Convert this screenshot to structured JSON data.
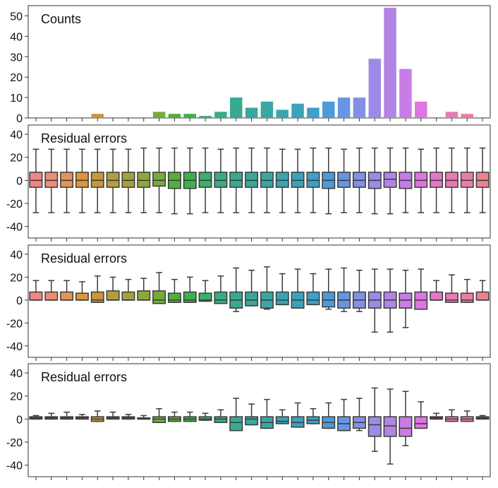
{
  "chart_data": [
    {
      "type": "bar",
      "title": "Counts",
      "ylim": [
        0,
        55
      ],
      "yticks": [
        0,
        10,
        20,
        30,
        40,
        50
      ],
      "values": [
        0,
        0,
        0,
        0,
        2,
        0,
        0,
        0,
        3,
        2,
        2,
        1,
        3,
        10,
        5,
        8,
        4,
        7,
        5,
        8,
        10,
        10,
        29,
        54,
        24,
        8,
        0,
        3,
        2,
        0
      ]
    },
    {
      "type": "box",
      "title": "Residual errors",
      "ylim": [
        -50,
        48
      ],
      "yticks": [
        40,
        20,
        0,
        -20,
        -40
      ],
      "tick_labels": [
        "40",
        "20",
        "0",
        "-20",
        "-40"
      ],
      "boxes": [
        {
          "low": -28,
          "q1": -6,
          "med": 0,
          "q3": 7,
          "high": 27
        },
        {
          "low": -28,
          "q1": -6,
          "med": 0,
          "q3": 7,
          "high": 27
        },
        {
          "low": -28,
          "q1": -6,
          "med": 0,
          "q3": 7,
          "high": 27
        },
        {
          "low": -28,
          "q1": -6,
          "med": 0,
          "q3": 7,
          "high": 27
        },
        {
          "low": -28,
          "q1": -6,
          "med": 0,
          "q3": 7,
          "high": 27
        },
        {
          "low": -28,
          "q1": -6,
          "med": 0,
          "q3": 7,
          "high": 27
        },
        {
          "low": -28,
          "q1": -6,
          "med": 0,
          "q3": 7,
          "high": 27
        },
        {
          "low": -28,
          "q1": -6,
          "med": 0,
          "q3": 7,
          "high": 28
        },
        {
          "low": -28,
          "q1": -5,
          "med": 0,
          "q3": 7,
          "high": 28
        },
        {
          "low": -29,
          "q1": -7,
          "med": 0,
          "q3": 7,
          "high": 28
        },
        {
          "low": -29,
          "q1": -7,
          "med": 0,
          "q3": 7,
          "high": 28
        },
        {
          "low": -28,
          "q1": -6,
          "med": 0,
          "q3": 7,
          "high": 28
        },
        {
          "low": -28,
          "q1": -6,
          "med": 0,
          "q3": 7,
          "high": 27
        },
        {
          "low": -28,
          "q1": -6,
          "med": 0,
          "q3": 7,
          "high": 28
        },
        {
          "low": -28,
          "q1": -6,
          "med": 0,
          "q3": 7,
          "high": 28
        },
        {
          "low": -28,
          "q1": -6,
          "med": 0,
          "q3": 7,
          "high": 28
        },
        {
          "low": -28,
          "q1": -6,
          "med": 0,
          "q3": 7,
          "high": 27
        },
        {
          "low": -28,
          "q1": -6,
          "med": 0,
          "q3": 7,
          "high": 27
        },
        {
          "low": -28,
          "q1": -6,
          "med": 0,
          "q3": 7,
          "high": 28
        },
        {
          "low": -29,
          "q1": -7,
          "med": 0,
          "q3": 7,
          "high": 28
        },
        {
          "low": -28,
          "q1": -6,
          "med": 0,
          "q3": 7,
          "high": 27
        },
        {
          "low": -28,
          "q1": -6,
          "med": 0,
          "q3": 7,
          "high": 28
        },
        {
          "low": -29,
          "q1": -7,
          "med": 0,
          "q3": 7,
          "high": 28
        },
        {
          "low": -29,
          "q1": -6,
          "med": 1,
          "q3": 7,
          "high": 28
        },
        {
          "low": -28,
          "q1": -7,
          "med": 0,
          "q3": 7,
          "high": 28
        },
        {
          "low": -28,
          "q1": -6,
          "med": 0,
          "q3": 7,
          "high": 27
        },
        {
          "low": -28,
          "q1": -6,
          "med": 0,
          "q3": 7,
          "high": 28
        },
        {
          "low": -28,
          "q1": -6,
          "med": 0,
          "q3": 7,
          "high": 28
        },
        {
          "low": -28,
          "q1": -6,
          "med": 0,
          "q3": 7,
          "high": 28
        },
        {
          "low": -28,
          "q1": -6,
          "med": 0,
          "q3": 7,
          "high": 28
        }
      ]
    },
    {
      "type": "box",
      "title": "Residual errors",
      "ylim": [
        -50,
        48
      ],
      "yticks": [
        40,
        20,
        0,
        -20,
        -40
      ],
      "tick_labels": [
        "40",
        "20",
        "0",
        "-20",
        "-40"
      ],
      "boxes": [
        {
          "low": 0,
          "q1": 0,
          "med": 0,
          "q3": 7,
          "high": 17
        },
        {
          "low": 0,
          "q1": 0,
          "med": 0,
          "q3": 7,
          "high": 17
        },
        {
          "low": 0,
          "q1": 0,
          "med": 0,
          "q3": 7,
          "high": 17
        },
        {
          "low": 0,
          "q1": 0,
          "med": 0,
          "q3": 6,
          "high": 16
        },
        {
          "low": -2,
          "q1": -2,
          "med": 0,
          "q3": 7,
          "high": 21
        },
        {
          "low": 0,
          "q1": 0,
          "med": 0,
          "q3": 8,
          "high": 20
        },
        {
          "low": 0,
          "q1": 0,
          "med": 0,
          "q3": 7,
          "high": 18
        },
        {
          "low": 0,
          "q1": 0,
          "med": 0,
          "q3": 8,
          "high": 19
        },
        {
          "low": -3,
          "q1": -3,
          "med": 0,
          "q3": 8,
          "high": 24
        },
        {
          "low": -2,
          "q1": -2,
          "med": 0,
          "q3": 6,
          "high": 18
        },
        {
          "low": -2,
          "q1": -2,
          "med": 0,
          "q3": 7,
          "high": 20
        },
        {
          "low": -1,
          "q1": -1,
          "med": 0,
          "q3": 6,
          "high": 17
        },
        {
          "low": -3,
          "q1": -3,
          "med": 0,
          "q3": 7,
          "high": 21
        },
        {
          "low": -10,
          "q1": -7,
          "med": 0,
          "q3": 7,
          "high": 28
        },
        {
          "low": -5,
          "q1": -5,
          "med": 0,
          "q3": 7,
          "high": 26
        },
        {
          "low": -8,
          "q1": -7,
          "med": 0,
          "q3": 7,
          "high": 29
        },
        {
          "low": -4,
          "q1": -4,
          "med": 0,
          "q3": 7,
          "high": 23
        },
        {
          "low": -7,
          "q1": -7,
          "med": 0,
          "q3": 7,
          "high": 27
        },
        {
          "low": -4,
          "q1": -4,
          "med": 0,
          "q3": 7,
          "high": 23
        },
        {
          "low": -8,
          "q1": -6,
          "med": 0,
          "q3": 7,
          "high": 27
        },
        {
          "low": -10,
          "q1": -7,
          "med": 0,
          "q3": 7,
          "high": 28
        },
        {
          "low": -10,
          "q1": -7,
          "med": 0,
          "q3": 7,
          "high": 26
        },
        {
          "low": -28,
          "q1": -7,
          "med": 0,
          "q3": 7,
          "high": 27
        },
        {
          "low": -28,
          "q1": -7,
          "med": 0,
          "q3": 7,
          "high": 27
        },
        {
          "low": -24,
          "q1": -7,
          "med": 0,
          "q3": 6,
          "high": 26
        },
        {
          "low": -8,
          "q1": -8,
          "med": 0,
          "q3": 7,
          "high": 27
        },
        {
          "low": 0,
          "q1": 0,
          "med": 0,
          "q3": 7,
          "high": 17
        },
        {
          "low": -2,
          "q1": -2,
          "med": 0,
          "q3": 6,
          "high": 22
        },
        {
          "low": -2,
          "q1": -2,
          "med": 0,
          "q3": 6,
          "high": 18
        },
        {
          "low": 0,
          "q1": 0,
          "med": 0,
          "q3": 7,
          "high": 17
        }
      ]
    },
    {
      "type": "box",
      "title": "Residual errors",
      "ylim": [
        -50,
        48
      ],
      "yticks": [
        40,
        20,
        0,
        -20,
        -40
      ],
      "tick_labels": [
        "40",
        "20",
        "0",
        "-20",
        "-40"
      ],
      "boxes": [
        {
          "low": 0,
          "q1": 0,
          "med": 1,
          "q3": 2,
          "high": 3
        },
        {
          "low": 0,
          "q1": 0,
          "med": 1,
          "q3": 2,
          "high": 5
        },
        {
          "low": 0,
          "q1": 0,
          "med": 1,
          "q3": 2,
          "high": 6
        },
        {
          "low": 0,
          "q1": 0,
          "med": 1,
          "q3": 2,
          "high": 4
        },
        {
          "low": -2,
          "q1": -2,
          "med": 0,
          "q3": 2,
          "high": 7
        },
        {
          "low": 0,
          "q1": 0,
          "med": 1,
          "q3": 2,
          "high": 6
        },
        {
          "low": 0,
          "q1": 0,
          "med": 1,
          "q3": 2,
          "high": 4
        },
        {
          "low": 0,
          "q1": 0,
          "med": 0,
          "q3": 1,
          "high": 3
        },
        {
          "low": -3,
          "q1": -3,
          "med": 0,
          "q3": 2,
          "high": 9
        },
        {
          "low": -2,
          "q1": -2,
          "med": 0,
          "q3": 2,
          "high": 6
        },
        {
          "low": -2,
          "q1": -2,
          "med": 0,
          "q3": 2,
          "high": 6
        },
        {
          "low": -1,
          "q1": -1,
          "med": 0,
          "q3": 2,
          "high": 5
        },
        {
          "low": -3,
          "q1": -3,
          "med": 0,
          "q3": 2,
          "high": 8
        },
        {
          "low": -10,
          "q1": -10,
          "med": -3,
          "q3": 2,
          "high": 18
        },
        {
          "low": -5,
          "q1": -5,
          "med": 0,
          "q3": 2,
          "high": 13
        },
        {
          "low": -8,
          "q1": -8,
          "med": -3,
          "q3": 2,
          "high": 17
        },
        {
          "low": -4,
          "q1": -4,
          "med": -2,
          "q3": 2,
          "high": 8
        },
        {
          "low": -7,
          "q1": -7,
          "med": -3,
          "q3": 2,
          "high": 14
        },
        {
          "low": -4,
          "q1": -4,
          "med": -1,
          "q3": 2,
          "high": 9
        },
        {
          "low": -8,
          "q1": -8,
          "med": -3,
          "q3": 2,
          "high": 14
        },
        {
          "low": -10,
          "q1": -10,
          "med": -4,
          "q3": 2,
          "high": 17
        },
        {
          "low": -10,
          "q1": -8,
          "med": -3,
          "q3": 2,
          "high": 18
        },
        {
          "low": -28,
          "q1": -15,
          "med": -5,
          "q3": 2,
          "high": 27
        },
        {
          "low": -39,
          "q1": -15,
          "med": -6,
          "q3": 2,
          "high": 26
        },
        {
          "low": -23,
          "q1": -15,
          "med": -8,
          "q3": 2,
          "high": 24
        },
        {
          "low": -8,
          "q1": -8,
          "med": -4,
          "q3": 2,
          "high": 15
        },
        {
          "low": 0,
          "q1": 0,
          "med": 1,
          "q3": 2,
          "high": 5
        },
        {
          "low": -2,
          "q1": -2,
          "med": 0,
          "q3": 2,
          "high": 8
        },
        {
          "low": -2,
          "q1": -2,
          "med": 0,
          "q3": 2,
          "high": 7
        },
        {
          "low": 0,
          "q1": 0,
          "med": 1,
          "q3": 2,
          "high": 3
        }
      ]
    }
  ],
  "colors": {
    "palette": [
      "#f08783",
      "#ed8d74",
      "#e69257",
      "#de953b",
      "#c9973a",
      "#b59d3b",
      "#a3a13a",
      "#8fa63a",
      "#76ab3a",
      "#55ae3d",
      "#3cb04c",
      "#3aaf70",
      "#38ad83",
      "#37ab91",
      "#38a99c",
      "#39a7a6",
      "#3aa5af",
      "#3ca2ba",
      "#3e9fc7",
      "#4c9ad7",
      "#6895e0",
      "#8490e4",
      "#9d8ae7",
      "#b184e6",
      "#c77de5",
      "#dc76e0",
      "#e776c9",
      "#ea79b5",
      "#ec7da2",
      "#ee818d"
    ],
    "frame": "#333333",
    "line": "#3b3b3b"
  }
}
